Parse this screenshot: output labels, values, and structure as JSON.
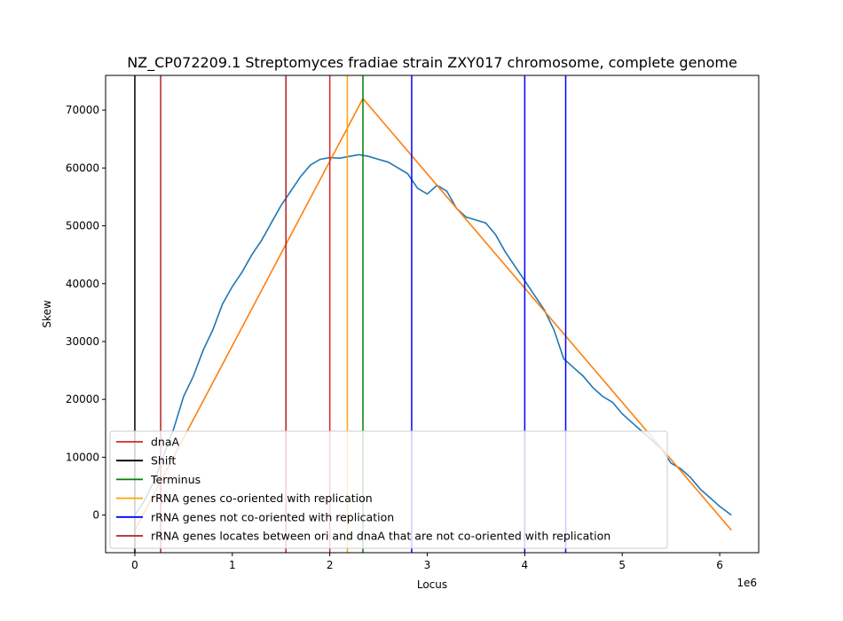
{
  "chart_data": {
    "type": "line",
    "title": "NZ_CP072209.1 Streptomyces fradiae strain ZXY017 chromosome, complete genome",
    "xlabel": "Locus",
    "ylabel": "Skew",
    "x_offset_label": "1e6",
    "xlim": [
      -300000,
      6400000
    ],
    "ylim": [
      -6500,
      76000
    ],
    "x_ticks": [
      0,
      1000000,
      2000000,
      3000000,
      4000000,
      5000000,
      6000000
    ],
    "x_tick_labels": [
      "0",
      "1",
      "2",
      "3",
      "4",
      "5",
      "6"
    ],
    "y_ticks": [
      0,
      10000,
      20000,
      30000,
      40000,
      50000,
      60000,
      70000
    ],
    "y_tick_labels": [
      "0",
      "10000",
      "20000",
      "30000",
      "40000",
      "50000",
      "60000",
      "70000"
    ],
    "grid": false,
    "legend_position": "lower-left",
    "series": [
      {
        "type": "line",
        "color": "#1f77b4",
        "x": [
          0,
          100000,
          200000,
          300000,
          400000,
          500000,
          600000,
          700000,
          800000,
          900000,
          1000000,
          1100000,
          1200000,
          1300000,
          1400000,
          1500000,
          1600000,
          1700000,
          1800000,
          1900000,
          2000000,
          2100000,
          2200000,
          2300000,
          2400000,
          2500000,
          2600000,
          2700000,
          2800000,
          2900000,
          3000000,
          3100000,
          3200000,
          3300000,
          3400000,
          3500000,
          3600000,
          3700000,
          3800000,
          3900000,
          4000000,
          4100000,
          4200000,
          4300000,
          4400000,
          4500000,
          4600000,
          4700000,
          4800000,
          4900000,
          5000000,
          5100000,
          5200000,
          5300000,
          5400000,
          5500000,
          5600000,
          5700000,
          5800000,
          5900000,
          6000000,
          6120000
        ],
        "y": [
          0,
          2500,
          6000,
          10500,
          15000,
          20500,
          24000,
          28500,
          32000,
          36500,
          39500,
          42000,
          45000,
          47500,
          50500,
          53500,
          56000,
          58500,
          60500,
          61500,
          61800,
          61700,
          62000,
          62300,
          62000,
          61500,
          61000,
          60000,
          59000,
          56500,
          55500,
          57000,
          56000,
          53000,
          51500,
          51000,
          50500,
          48500,
          45500,
          43000,
          40500,
          38000,
          35500,
          32000,
          27000,
          25500,
          24000,
          22000,
          20500,
          19500,
          17500,
          16000,
          14500,
          13000,
          11500,
          9000,
          8000,
          6500,
          4500,
          3000,
          1500,
          0
        ]
      },
      {
        "type": "line",
        "color": "#ff7f0e",
        "x": [
          0,
          2340000,
          6120000
        ],
        "y": [
          -2600,
          72000,
          -2600
        ]
      }
    ],
    "vlines": [
      {
        "label": "dnaA",
        "color": "#d62728",
        "x": 2000000
      },
      {
        "label": "Shift",
        "color": "#000000",
        "x": 0
      },
      {
        "label": "Terminus",
        "color": "#008000",
        "x": 2340000
      },
      {
        "label": "rRNA genes co-oriented with replication",
        "color": "#ffa500",
        "x": 2180000
      },
      {
        "label": "rRNA genes not co-oriented with replication",
        "color": "#0000ff",
        "x": 2840000
      },
      {
        "label": "rRNA genes not co-oriented with replication",
        "color": "#0000ff",
        "x": 4000000
      },
      {
        "label": "rRNA genes not co-oriented with replication",
        "color": "#0000ff",
        "x": 4420000
      },
      {
        "label": "rRNA genes locates between ori and dnaA that are not co-oriented with replication",
        "color": "#b22222",
        "x": 265000
      },
      {
        "label": "rRNA genes locates between ori and dnaA that are not co-oriented with replication",
        "color": "#b22222",
        "x": 1550000
      }
    ],
    "legend": [
      {
        "label": "dnaA",
        "color": "#d62728"
      },
      {
        "label": "Shift",
        "color": "#000000"
      },
      {
        "label": "Terminus",
        "color": "#008000"
      },
      {
        "label": "rRNA genes co-oriented with replication",
        "color": "#ffa500"
      },
      {
        "label": "rRNA genes not co-oriented with replication",
        "color": "#0000ff"
      },
      {
        "label": "rRNA genes locates between ori and dnaA that are not co-oriented with replication",
        "color": "#b22222"
      }
    ]
  }
}
